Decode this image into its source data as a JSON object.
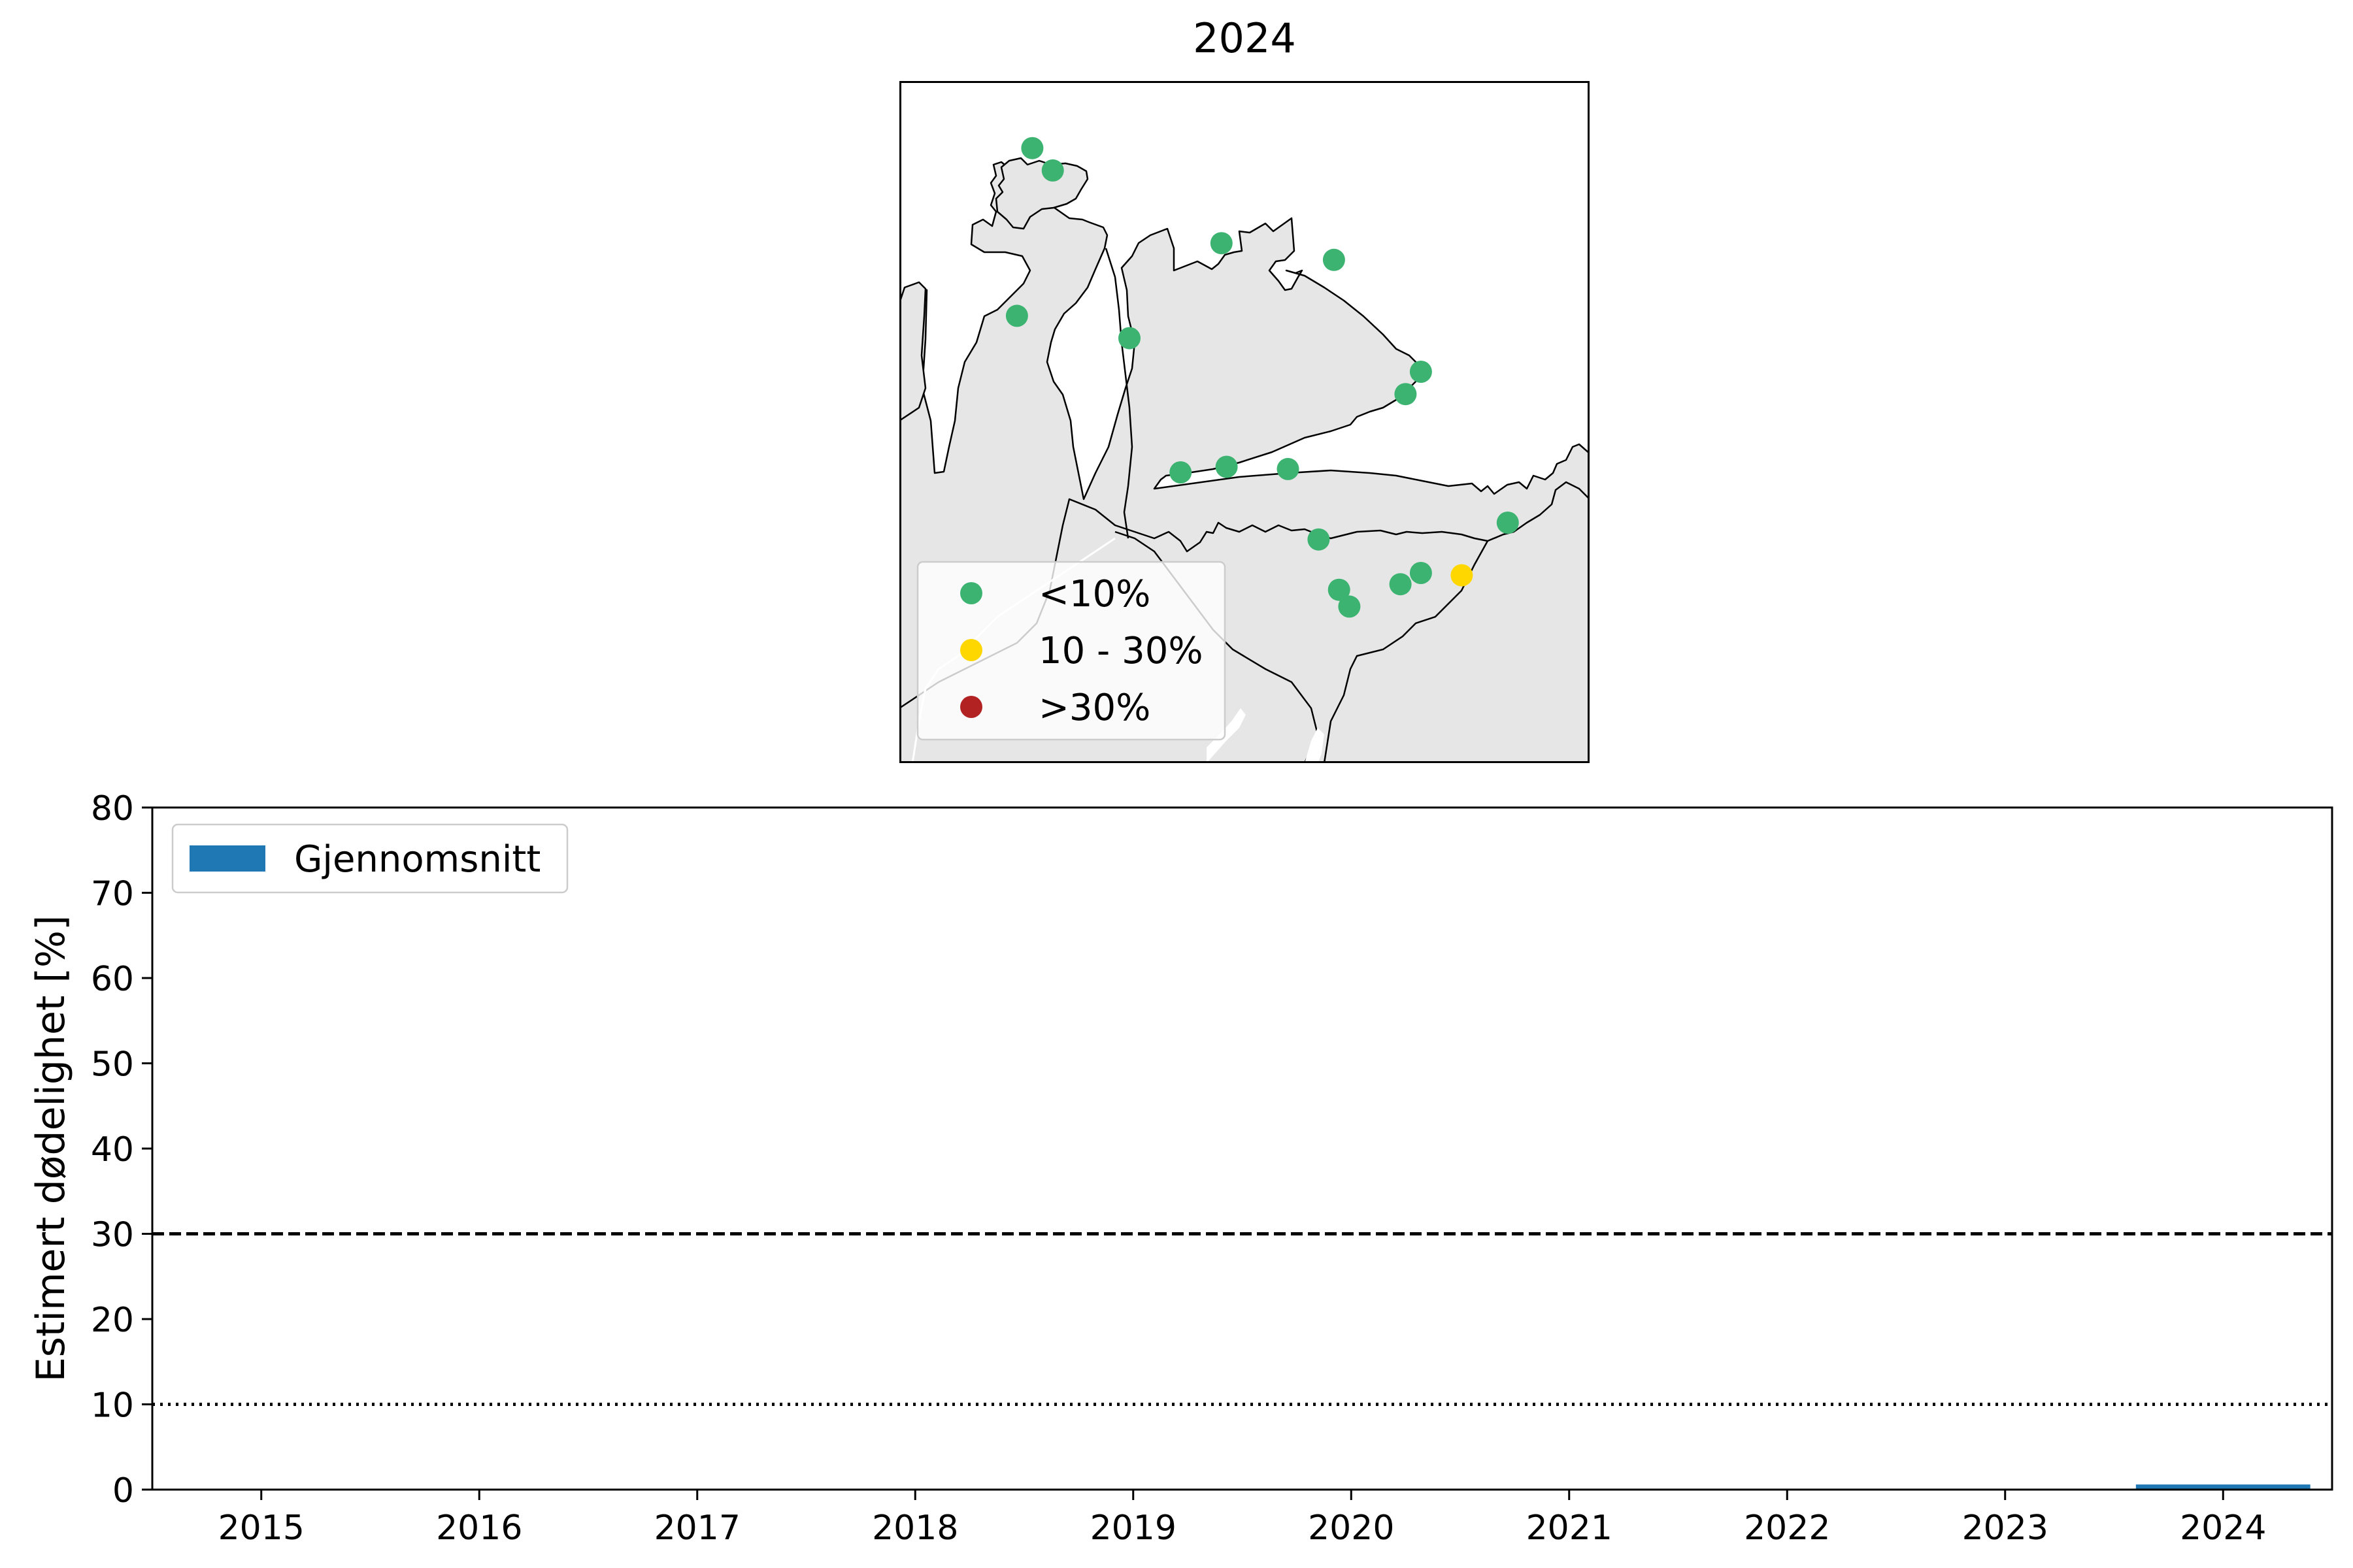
{
  "map": {
    "title": "2024",
    "legend": [
      {
        "label": "<10%",
        "color": "#3cb371"
      },
      {
        "label": "10 - 30%",
        "color": "#ffd700"
      },
      {
        "label": ">30%",
        "color": "#b22222"
      }
    ]
  },
  "chart_data": [
    {
      "type": "scatter",
      "title": "2024",
      "series": [
        {
          "name": "<10%",
          "color": "#3cb371",
          "points": [
            [
              20.9,
              71.2
            ],
            [
              21.3,
              71.0
            ],
            [
              24.6,
              70.35
            ],
            [
              26.8,
              70.2
            ],
            [
              20.6,
              69.7
            ],
            [
              22.8,
              69.5
            ],
            [
              28.5,
              69.2
            ],
            [
              28.2,
              69.0
            ],
            [
              23.8,
              68.3
            ],
            [
              24.7,
              68.35
            ],
            [
              25.9,
              68.33
            ],
            [
              26.5,
              67.7
            ],
            [
              26.9,
              67.25
            ],
            [
              27.1,
              67.1
            ],
            [
              28.1,
              67.3
            ],
            [
              28.5,
              67.4
            ],
            [
              30.2,
              67.85
            ]
          ]
        },
        {
          "name": "10 - 30%",
          "color": "#ffd700",
          "points": [
            [
              29.3,
              67.38
            ]
          ]
        },
        {
          "name": ">30%",
          "color": "#b22222",
          "points": []
        }
      ],
      "legend_position": "lower-left",
      "land_color": "#e6e6e6"
    },
    {
      "type": "bar",
      "categories": [
        "2015",
        "2016",
        "2017",
        "2018",
        "2019",
        "2020",
        "2021",
        "2022",
        "2023",
        "2024"
      ],
      "series": [
        {
          "name": "Gjennomsnitt",
          "color": "#1f77b4",
          "values": [
            null,
            null,
            null,
            null,
            null,
            null,
            null,
            null,
            null,
            0.6
          ]
        }
      ],
      "ylabel": "Estimert dødelighet [%]",
      "xlabel": "",
      "ylim": [
        0,
        80
      ],
      "yticks": [
        "0",
        "10",
        "20",
        "30",
        "40",
        "50",
        "60",
        "70",
        "80"
      ],
      "reference_lines": [
        {
          "value": 30,
          "style": "dashed",
          "color": "#000000"
        },
        {
          "value": 10,
          "style": "dotted",
          "color": "#000000"
        }
      ],
      "legend_position": "top-left",
      "grid": false
    }
  ]
}
